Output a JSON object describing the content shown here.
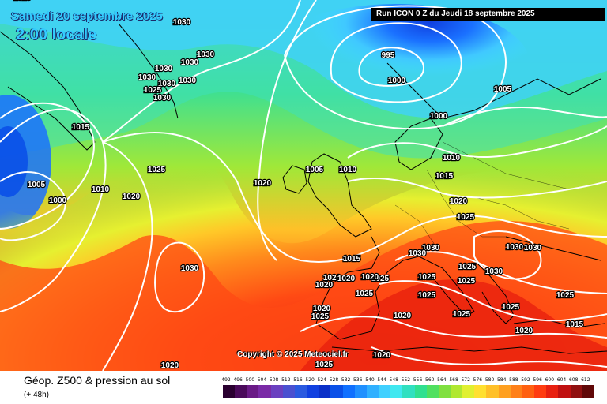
{
  "header": {
    "date_label": "Samedi 20 septembre 2025",
    "time_label": "2:00 locale",
    "run_label": "Run ICON 0 Z du Jeudi 18 septembre 2025"
  },
  "copyright": "Copyright © 2025 Meteociel.fr",
  "legend": {
    "title": "Géop. Z500 & pression au sol",
    "subtitle": "(+ 48h)",
    "scale_values": [
      "492",
      "496",
      "500",
      "504",
      "508",
      "512",
      "516",
      "520",
      "524",
      "528",
      "532",
      "536",
      "540",
      "544",
      "548",
      "552",
      "556",
      "560",
      "564",
      "568",
      "572",
      "576",
      "580",
      "584",
      "588",
      "592",
      "596",
      "600",
      "604",
      "608",
      "612"
    ],
    "scale_colors": [
      "#2a0030",
      "#4a0a5a",
      "#6a1a86",
      "#7a2aa6",
      "#6a40c0",
      "#4a50d0",
      "#2a5ae0",
      "#1040e0",
      "#0a30c8",
      "#0a50e8",
      "#1070ff",
      "#2090ff",
      "#30b0ff",
      "#40d0ff",
      "#40e8f0",
      "#30e0c0",
      "#30e090",
      "#50e060",
      "#80e040",
      "#b0e830",
      "#e0f030",
      "#ffe030",
      "#ffc028",
      "#ffa020",
      "#ff8018",
      "#ff6010",
      "#ff3c10",
      "#e82010",
      "#c01010",
      "#901010",
      "#600808"
    ]
  },
  "pressure_labels": [
    "1025",
    "1030",
    "1030",
    "1030",
    "1030",
    "1030",
    "1030",
    "1025",
    "1030",
    "1030",
    "1015",
    "1025",
    "1010",
    "1005",
    "1000",
    "1020",
    "1030",
    "1020",
    "995",
    "1000",
    "1000",
    "1005",
    "1005",
    "1010",
    "1010",
    "1015",
    "1020",
    "1025",
    "1015",
    "1030",
    "1030",
    "1030",
    "1030",
    "1025",
    "1025",
    "1025",
    "1025",
    "1030",
    "1020",
    "1020",
    "1020",
    "1020",
    "1025",
    "1025",
    "1020",
    "1025",
    "1025",
    "1025",
    "1020",
    "1015",
    "1025",
    "1020",
    "1020",
    "1025",
    "1020"
  ]
}
